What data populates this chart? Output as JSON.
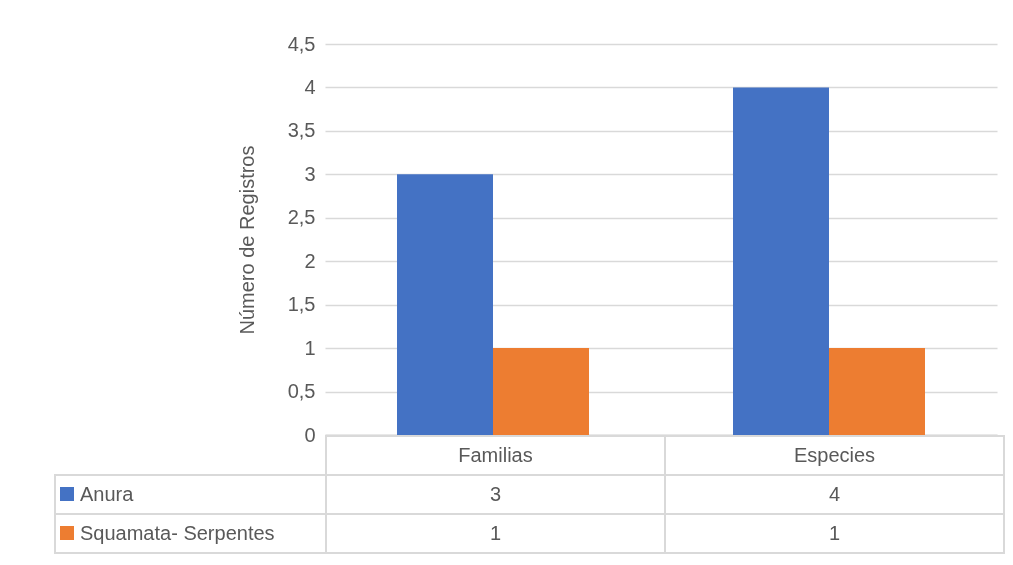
{
  "chart_data": {
    "type": "bar",
    "ylabel": "Número de Registros",
    "categories": [
      "Familias",
      "Especies"
    ],
    "series": [
      {
        "name": "Anura",
        "color": "#4472c4",
        "values": [
          3,
          4
        ]
      },
      {
        "name": "Squamata- Serpentes",
        "color": "#ed7d31",
        "values": [
          1,
          1
        ]
      }
    ],
    "ylim": [
      0,
      4.5
    ],
    "yticks": [
      0,
      {
        "value": 0.5,
        "label": "0,5"
      },
      1,
      {
        "value": 1.5,
        "label": "1,5"
      },
      2,
      {
        "value": 2.5,
        "label": "2,5"
      },
      3,
      {
        "value": 3.5,
        "label": "3,5"
      },
      4,
      {
        "value": 4.5,
        "label": "4,5"
      }
    ],
    "grid": "y",
    "legend": "bottom",
    "data_labels": true
  }
}
